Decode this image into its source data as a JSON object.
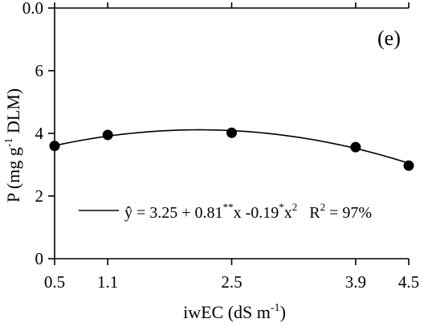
{
  "chart_data": {
    "type": "scatter",
    "panel_label": "(e)",
    "xlabel": {
      "main": "iwEC (dS m",
      "sup": "-1",
      "end": ")"
    },
    "ylabel": {
      "main": "P (mg g",
      "sup": "-1",
      "end": " DLM)"
    },
    "xticks": [
      0.5,
      1.1,
      2.5,
      3.9,
      4.5
    ],
    "yticks": [
      0,
      2,
      4,
      6
    ],
    "top_tick_label": "0.0",
    "xlim": [
      0.5,
      4.5
    ],
    "ylim": [
      0,
      8
    ],
    "grid": false,
    "points": [
      {
        "x": 0.5,
        "y": 3.6
      },
      {
        "x": 1.1,
        "y": 3.95
      },
      {
        "x": 2.5,
        "y": 4.02
      },
      {
        "x": 3.9,
        "y": 3.56
      },
      {
        "x": 4.5,
        "y": 2.97
      }
    ],
    "fit": {
      "intercept": 3.25,
      "linear": 0.81,
      "quadratic": -0.19
    },
    "equation": {
      "yhat": "ŷ",
      "intercept_text": " = 3.25 + 0.81",
      "linear_sig": "**",
      "linear_var": "x -0.19",
      "quad_sig": "*",
      "quad_var": "x",
      "quad_exp": "2",
      "r2_base": "   R",
      "r2_exp": "2",
      "r2_value": " = 97%"
    },
    "legend": "bottom-center"
  }
}
